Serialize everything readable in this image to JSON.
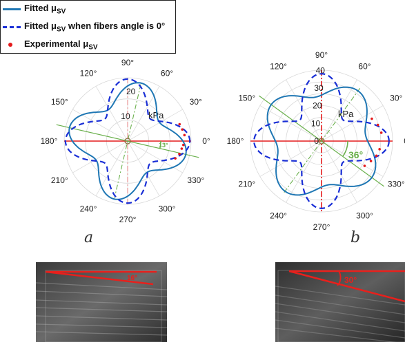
{
  "legend": {
    "items": [
      {
        "label_main": "Fitted μ",
        "label_sub": "SV",
        "label_rest": "",
        "style": "solid",
        "color": "#1f77b4"
      },
      {
        "label_main": "Fitted μ",
        "label_sub": "SV",
        "label_rest": " when fibers angle is 0°",
        "style": "dashed",
        "color": "#1a2fd6"
      },
      {
        "label_main": "Experimental μ",
        "label_sub": "SV",
        "label_rest": "",
        "style": "dot",
        "color": "#e41a1c"
      }
    ]
  },
  "panels": {
    "a": {
      "letter": "a",
      "ultrasound_angle_label": "16°"
    },
    "b": {
      "letter": "b",
      "ultrasound_angle_label": "30°"
    }
  },
  "chart_data": [
    {
      "type": "polar-line",
      "panel": "a",
      "angular_tick_labels": [
        "0°",
        "30°",
        "60°",
        "90°",
        "120°",
        "150°",
        "180°",
        "210°",
        "240°",
        "270°",
        "300°",
        "330°"
      ],
      "radial_tick_labels": [
        "10",
        "20"
      ],
      "radial_unit_label": "kPa",
      "rlim": [
        0,
        25
      ],
      "fiber_angle_label": "13°",
      "fiber_angle_deg": -13,
      "series": [
        {
          "name": "Fitted μSV",
          "style": "solid",
          "color": "#1f77b4",
          "base": 19.0,
          "amplitude": 4.5,
          "phase_deg": -13
        },
        {
          "name": "Fitted μSV when fibers angle is 0°",
          "style": "dashed",
          "color": "#1a2fd6",
          "base": 18.5,
          "amplitude": 6.0,
          "phase_deg": 0
        }
      ],
      "experimental_points": [
        {
          "theta_deg": -20,
          "r": 20
        },
        {
          "theta_deg": -14,
          "r": 21
        },
        {
          "theta_deg": -8,
          "r": 21.5
        },
        {
          "theta_deg": -4,
          "r": 22
        },
        {
          "theta_deg": 6,
          "r": 22.5
        },
        {
          "theta_deg": 12,
          "r": 22
        },
        {
          "theta_deg": 18,
          "r": 21.5
        }
      ]
    },
    {
      "type": "polar-line",
      "panel": "b",
      "angular_tick_labels": [
        "0°",
        "30°",
        "60°",
        "90°",
        "120°",
        "150°",
        "180°",
        "210°",
        "240°",
        "270°",
        "300°",
        "330°"
      ],
      "radial_tick_labels": [
        "0",
        "10",
        "20",
        "30",
        "40"
      ],
      "radial_unit_label": "kPa",
      "rlim": [
        0,
        40
      ],
      "fiber_angle_label": "36°",
      "fiber_angle_deg": -36,
      "series": [
        {
          "name": "Fitted μSV",
          "style": "solid",
          "color": "#1f77b4",
          "base": 30.0,
          "amplitude": 5.0,
          "phase_deg": -36
        },
        {
          "name": "Fitted μSV when fibers angle is 0°",
          "style": "dashed",
          "color": "#1a2fd6",
          "base": 27.5,
          "amplitude": 10.5,
          "phase_deg": 0
        }
      ],
      "experimental_points": [
        {
          "theta_deg": -30,
          "r": 28
        },
        {
          "theta_deg": -22,
          "r": 30
        },
        {
          "theta_deg": -15,
          "r": 32
        },
        {
          "theta_deg": -8,
          "r": 33
        },
        {
          "theta_deg": 8,
          "r": 34
        },
        {
          "theta_deg": 16,
          "r": 33
        },
        {
          "theta_deg": 24,
          "r": 31
        }
      ]
    }
  ]
}
